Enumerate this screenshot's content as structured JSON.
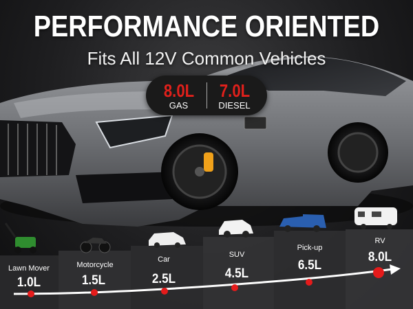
{
  "header": {
    "title": "PERFORMANCE ORIENTED",
    "subtitle": "Fits All 12V Common Vehicles"
  },
  "badge": {
    "gas_volume": "8.0L",
    "gas_label": "GAS",
    "diesel_volume": "7.0L",
    "diesel_label": "DIESEL"
  },
  "vehicles": [
    {
      "name": "Lawn Mover",
      "volume": "1.0L"
    },
    {
      "name": "Motorcycle",
      "volume": "1.5L"
    },
    {
      "name": "Car",
      "volume": "2.5L"
    },
    {
      "name": "SUV",
      "volume": "4.5L"
    },
    {
      "name": "Pick-up",
      "volume": "6.5L"
    },
    {
      "name": "RV",
      "volume": "8.0L"
    }
  ],
  "colors": {
    "accent": "#e51b1b",
    "badge_bg": "#1a1a1a",
    "text": "#ffffff"
  }
}
